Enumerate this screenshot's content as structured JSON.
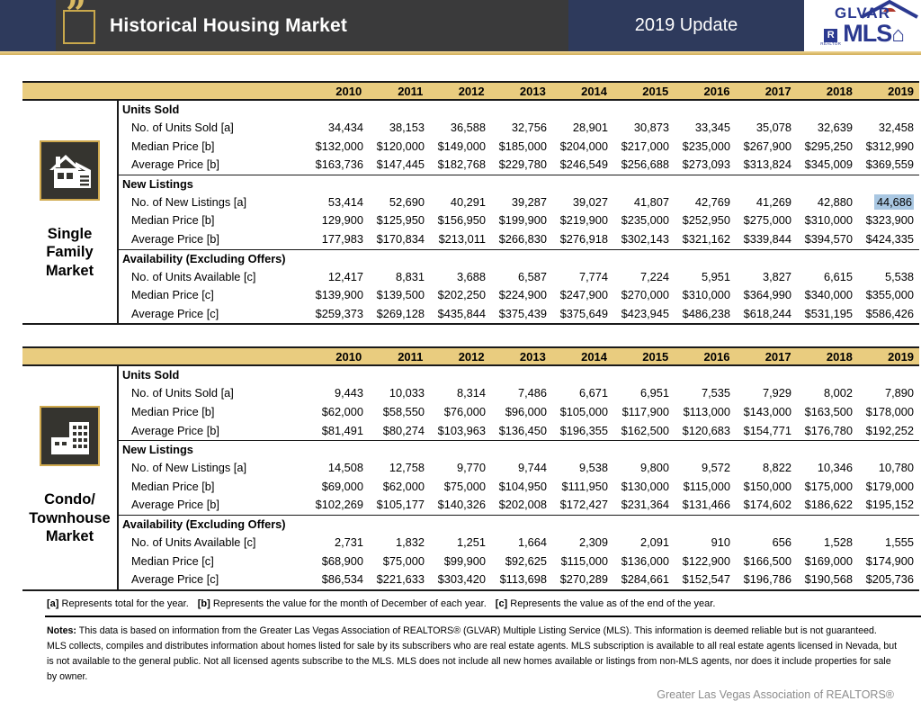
{
  "header": {
    "title": "Historical Housing Market",
    "update_label": "2019 Update",
    "logo": {
      "top": "GLVAR",
      "bottom": "MLS",
      "realtor_mark": "R",
      "realtor_caption": "REALTOR"
    }
  },
  "years": [
    "2010",
    "2011",
    "2012",
    "2013",
    "2014",
    "2015",
    "2016",
    "2017",
    "2018",
    "2019"
  ],
  "tables": [
    {
      "market_label_lines": [
        "Single",
        "Family",
        "Market"
      ],
      "icon": "single-family-house-icon",
      "sections": [
        {
          "title": "Units Sold",
          "rows": [
            {
              "label": "No. of Units Sold [a]",
              "values": [
                "34,434",
                "38,153",
                "36,588",
                "32,756",
                "28,901",
                "30,873",
                "33,345",
                "35,078",
                "32,639",
                "32,458"
              ]
            },
            {
              "label": "Median Price [b]",
              "values": [
                "$132,000",
                "$120,000",
                "$149,000",
                "$185,000",
                "$204,000",
                "$217,000",
                "$235,000",
                "$267,900",
                "$295,250",
                "$312,990"
              ]
            },
            {
              "label": "Average Price [b]",
              "values": [
                "$163,736",
                "$147,445",
                "$182,768",
                "$229,780",
                "$246,549",
                "$256,688",
                "$273,093",
                "$313,824",
                "$345,009",
                "$369,559"
              ]
            }
          ]
        },
        {
          "title": "New Listings",
          "rows": [
            {
              "label": "No. of New Listings [a]",
              "highlight_col": 9,
              "values": [
                "53,414",
                "52,690",
                "40,291",
                "39,287",
                "39,027",
                "41,807",
                "42,769",
                "41,269",
                "42,880",
                "44,686"
              ]
            },
            {
              "label": "Median Price [b]",
              "values": [
                "129,900",
                "$125,950",
                "$156,950",
                "$199,900",
                "$219,900",
                "$235,000",
                "$252,950",
                "$275,000",
                "$310,000",
                "$323,900"
              ]
            },
            {
              "label": "Average Price [b]",
              "values": [
                "177,983",
                "$170,834",
                "$213,011",
                "$266,830",
                "$276,918",
                "$302,143",
                "$321,162",
                "$339,844",
                "$394,570",
                "$424,335"
              ]
            }
          ]
        },
        {
          "title": "Availability (Excluding Offers)",
          "rows": [
            {
              "label": "No. of Units Available [c]",
              "values": [
                "12,417",
                "8,831",
                "3,688",
                "6,587",
                "7,774",
                "7,224",
                "5,951",
                "3,827",
                "6,615",
                "5,538"
              ]
            },
            {
              "label": "Median Price [c]",
              "values": [
                "$139,900",
                "$139,500",
                "$202,250",
                "$224,900",
                "$247,900",
                "$270,000",
                "$310,000",
                "$364,990",
                "$340,000",
                "$355,000"
              ]
            },
            {
              "label": "Average Price [c]",
              "values": [
                "$259,373",
                "$269,128",
                "$435,844",
                "$375,439",
                "$375,649",
                "$423,945",
                "$486,238",
                "$618,244",
                "$531,195",
                "$586,426"
              ]
            }
          ]
        }
      ]
    },
    {
      "market_label_lines": [
        "Condo/",
        "Townhouse",
        "Market"
      ],
      "icon": "condo-building-icon",
      "sections": [
        {
          "title": "Units Sold",
          "rows": [
            {
              "label": "No. of Units Sold [a]",
              "values": [
                "9,443",
                "10,033",
                "8,314",
                "7,486",
                "6,671",
                "6,951",
                "7,535",
                "7,929",
                "8,002",
                "7,890"
              ]
            },
            {
              "label": "Median Price [b]",
              "values": [
                "$62,000",
                "$58,550",
                "$76,000",
                "$96,000",
                "$105,000",
                "$117,900",
                "$113,000",
                "$143,000",
                "$163,500",
                "$178,000"
              ]
            },
            {
              "label": "Average Price [b]",
              "values": [
                "$81,491",
                "$80,274",
                "$103,963",
                "$136,450",
                "$196,355",
                "$162,500",
                "$120,683",
                "$154,771",
                "$176,780",
                "$192,252"
              ]
            }
          ]
        },
        {
          "title": "New Listings",
          "rows": [
            {
              "label": "No. of New Listings [a]",
              "values": [
                "14,508",
                "12,758",
                "9,770",
                "9,744",
                "9,538",
                "9,800",
                "9,572",
                "8,822",
                "10,346",
                "10,780"
              ]
            },
            {
              "label": "Median Price [b]",
              "values": [
                "$69,000",
                "$62,000",
                "$75,000",
                "$104,950",
                "$111,950",
                "$130,000",
                "$115,000",
                "$150,000",
                "$175,000",
                "$179,000"
              ]
            },
            {
              "label": "Average Price [b]",
              "values": [
                "$102,269",
                "$105,177",
                "$140,326",
                "$202,008",
                "$172,427",
                "$231,364",
                "$131,466",
                "$174,602",
                "$186,622",
                "$195,152"
              ]
            }
          ]
        },
        {
          "title": "Availability (Excluding Offers)",
          "rows": [
            {
              "label": "No. of Units Available [c]",
              "values": [
                "2,731",
                "1,832",
                "1,251",
                "1,664",
                "2,309",
                "2,091",
                "910",
                "656",
                "1,528",
                "1,555"
              ]
            },
            {
              "label": "Median Price [c]",
              "values": [
                "$68,900",
                "$75,000",
                "$99,900",
                "$92,625",
                "$115,000",
                "$136,000",
                "$122,900",
                "$166,500",
                "$169,000",
                "$174,900"
              ]
            },
            {
              "label": "Average Price [c]",
              "values": [
                "$86,534",
                "$221,633",
                "$303,420",
                "$113,698",
                "$270,289",
                "$284,661",
                "$152,547",
                "$196,786",
                "$190,568",
                "$205,736"
              ]
            }
          ]
        }
      ]
    }
  ],
  "footnotes": [
    {
      "marker": "[a]",
      "text": "Represents total for the year."
    },
    {
      "marker": "[b]",
      "text": "Represents the value for the month of December of each year."
    },
    {
      "marker": "[c]",
      "text": "Represents the value as of the end of the year."
    }
  ],
  "notes": {
    "label": "Notes:",
    "text": "This data is based on information from the Greater Las Vegas Association of REALTORS® (GLVAR) Multiple Listing Service (MLS). This information is deemed reliable but is not guaranteed. MLS collects, compiles and distributes information about homes listed for sale by its subscribers who are real estate agents. MLS subscription is available to all real estate agents licensed in Nevada, but is not available to the general public. Not all licensed agents subscribe to the MLS. MLS does not include all new homes available or listings from non-MLS agents, nor does it include properties for sale by owner."
  },
  "footer": "Greater Las Vegas Association of REALTORS®",
  "colors": {
    "header_charcoal": "#3a3a3b",
    "header_navy": "#2e3a5c",
    "table_header_gold": "#e9cc7f",
    "gold_accent": "#cfa94e",
    "selection_highlight": "#a9c7e2",
    "logo_blue": "#2b3990",
    "logo_red": "#b03a2e"
  }
}
